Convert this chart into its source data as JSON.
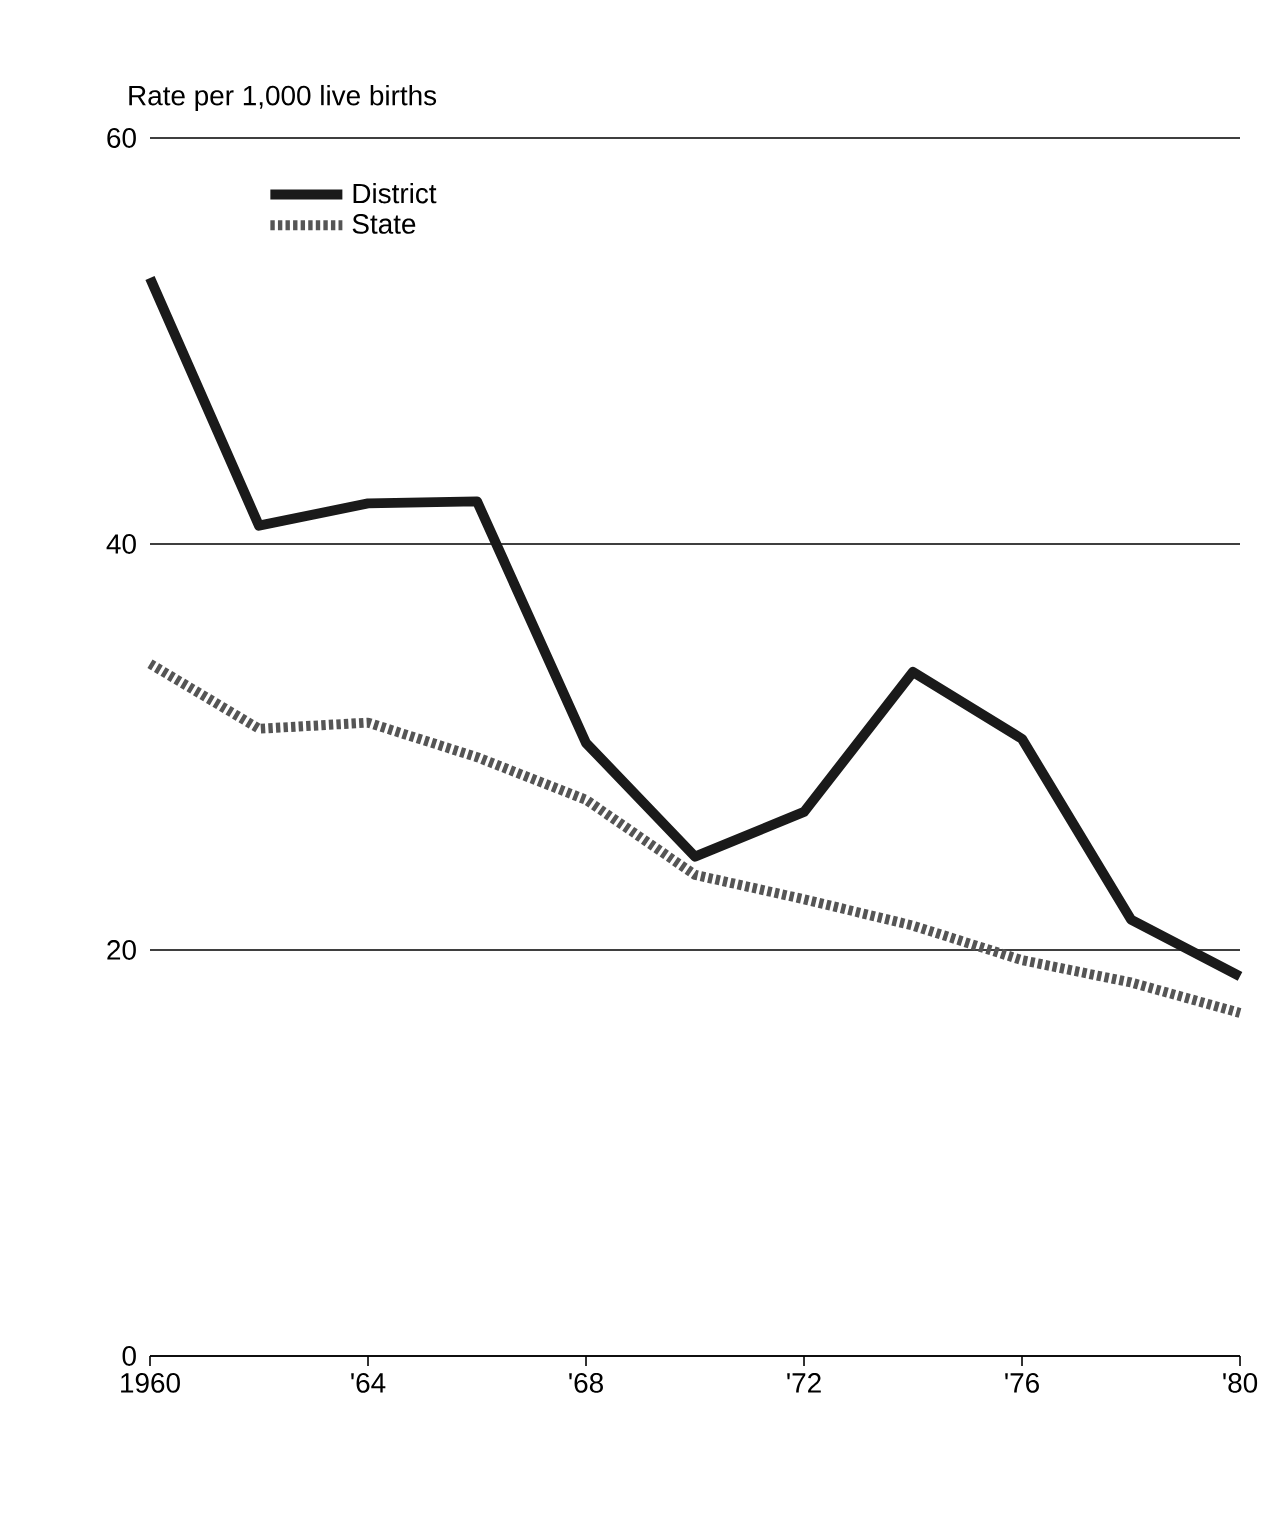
{
  "chart_data": {
    "type": "line",
    "ylabel": "Rate per 1,000 live births",
    "x": [
      1960,
      1962,
      1964,
      1966,
      1968,
      1970,
      1972,
      1974,
      1976,
      1978,
      1980
    ],
    "series": [
      {
        "name": "District",
        "color": "#1a1a1a",
        "line_style": "solid",
        "values": [
          53.1,
          40.9,
          42.0,
          42.1,
          30.2,
          24.6,
          26.8,
          33.7,
          30.4,
          21.5,
          18.7
        ]
      },
      {
        "name": "State",
        "color": "#555555",
        "line_style": "dotted",
        "values": [
          34.1,
          30.9,
          31.2,
          29.5,
          27.4,
          23.7,
          22.5,
          21.2,
          19.5,
          18.4,
          16.9
        ]
      }
    ],
    "xlim": [
      1960,
      1980
    ],
    "xticks": [
      {
        "value": 1960,
        "label": "1960"
      },
      {
        "value": 1964,
        "label": "'64"
      },
      {
        "value": 1968,
        "label": "'68"
      },
      {
        "value": 1972,
        "label": "'72"
      },
      {
        "value": 1976,
        "label": "'76"
      },
      {
        "value": 1980,
        "label": "'80"
      }
    ],
    "ylim": [
      0,
      60
    ],
    "yticks": [
      0,
      20,
      40,
      60
    ],
    "grid": "y",
    "legend": "top left",
    "marker": "none"
  }
}
